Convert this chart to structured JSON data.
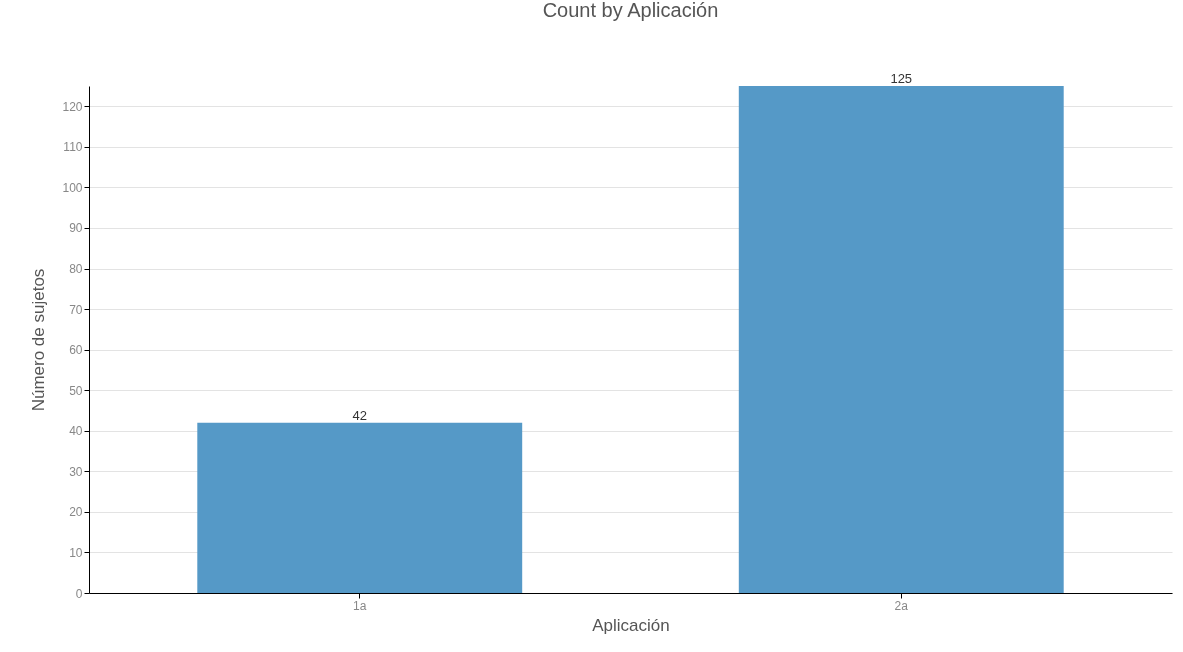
{
  "chart_data": {
    "type": "bar",
    "title": "Count by Aplicación",
    "xlabel": "Aplicación",
    "ylabel": "Número de sujetos",
    "categories": [
      "1a",
      "2a"
    ],
    "values": [
      42,
      125
    ],
    "color": "#5599c7",
    "ylim": [
      0,
      125
    ],
    "yticks": [
      0,
      10,
      20,
      30,
      40,
      50,
      60,
      70,
      80,
      90,
      100,
      110,
      120
    ],
    "grid": "y",
    "data_labels": true
  }
}
